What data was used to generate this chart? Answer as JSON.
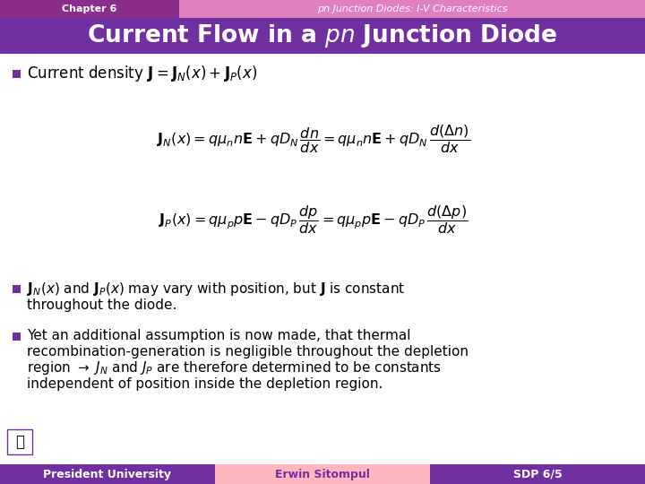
{
  "header_bg": "#c060a0",
  "header_left_bg": "#9030a0",
  "header_text_color": "#ffffff",
  "header_left": "Chapter 6",
  "header_right": "pn Junction Diodes: I-V Characteristics",
  "title_bg": "#7030a0",
  "title_color": "#ffffff",
  "body_bg": "#f0f0f0",
  "bullet_color": "#7030a0",
  "footer_left_bg": "#7030a0",
  "footer_mid_bg": "#ffb6c1",
  "footer_right_bg": "#7030a0",
  "footer_left_text": "President University",
  "footer_mid_text": "Erwin Sitompul",
  "footer_right_text": "SDP 6/5",
  "footer_mid_text_color": "#7030a0"
}
